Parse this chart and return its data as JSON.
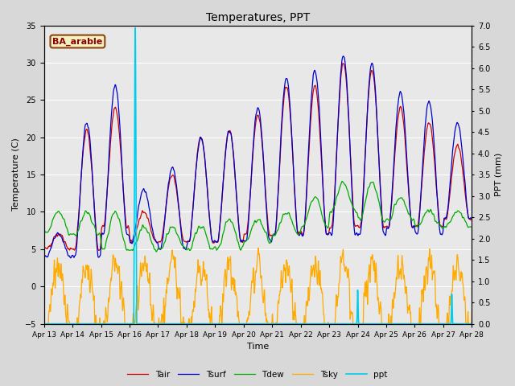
{
  "title": "Temperatures, PPT",
  "xlabel": "Time",
  "ylabel_left": "Temperature (C)",
  "ylabel_right": "PPT (mm)",
  "annotation": "BA_arable",
  "ylim_left": [
    -5,
    35
  ],
  "ylim_right": [
    0.0,
    7.0
  ],
  "yticks_left": [
    -5,
    0,
    5,
    10,
    15,
    20,
    25,
    30,
    35
  ],
  "yticks_right": [
    0.0,
    0.5,
    1.0,
    1.5,
    2.0,
    2.5,
    3.0,
    3.5,
    4.0,
    4.5,
    5.0,
    5.5,
    6.0,
    6.5,
    7.0
  ],
  "xtick_labels": [
    "Apr 13",
    "Apr 14",
    "Apr 15",
    "Apr 16",
    "Apr 17",
    "Apr 18",
    "Apr 19",
    "Apr 20",
    "Apr 21",
    "Apr 22",
    "Apr 23",
    "Apr 24",
    "Apr 25",
    "Apr 26",
    "Apr 27",
    "Apr 28"
  ],
  "colors": {
    "Tair": "#cc0000",
    "Tsurf": "#0000cc",
    "Tdew": "#00aa00",
    "Tsky": "#ffaa00",
    "ppt": "#00ccee"
  },
  "background_color": "#e8e8e8",
  "figsize": [
    6.4,
    4.8
  ],
  "dpi": 100
}
